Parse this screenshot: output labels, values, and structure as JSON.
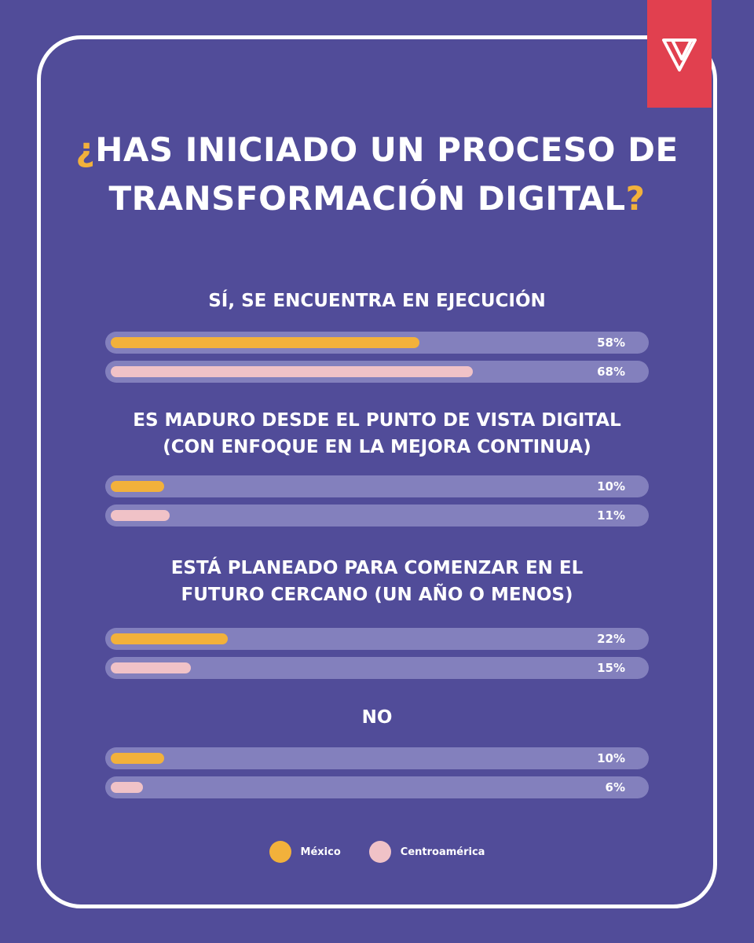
{
  "title": {
    "open_mark": "¿",
    "line1": "HAS INICIADO UN PROCESO DE",
    "line2": "TRANSFORMACIÓN DIGITAL",
    "close_mark": "?"
  },
  "colors": {
    "background": "#514c99",
    "mexico": "#f2b13b",
    "centroamerica": "#f0c2c7",
    "track": "#8380bd",
    "logo": "#e1404f"
  },
  "logo_icon": "triangle-logo-icon",
  "chart_data": {
    "type": "bar",
    "orientation": "horizontal",
    "xlim": [
      0,
      100
    ],
    "categories": [
      "SÍ, SE ENCUENTRA EN EJECUCIÓN",
      "ES MADURO DESDE EL PUNTO DE VISTA DIGITAL\n(CON ENFOQUE EN LA MEJORA CONTINUA)",
      "ESTÁ PLANEADO PARA COMENZAR EN EL\nFUTURO CERCANO (UN AÑO O MENOS)",
      "NO"
    ],
    "series": [
      {
        "name": "México",
        "values": [
          58,
          10,
          22,
          10
        ],
        "labels": [
          "58%",
          "10%",
          "22%",
          "10%"
        ]
      },
      {
        "name": "Centroamérica",
        "values": [
          68,
          11,
          15,
          6
        ],
        "labels": [
          "68%",
          "11%",
          "15%",
          "6%"
        ]
      }
    ],
    "legend": "bottom-center"
  }
}
